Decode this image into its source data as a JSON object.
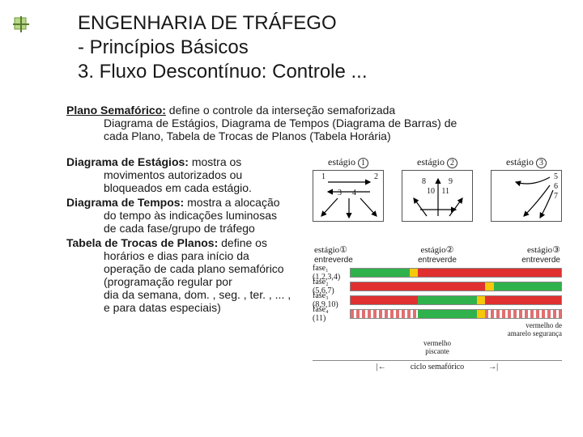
{
  "title": {
    "line1": "ENGENHARIA DE TRÁFEGO",
    "line2": "- Princípios Básicos",
    "line3": "3. Fluxo Descontínuo: Controle ..."
  },
  "plano": {
    "head": "Plano Semafórico:",
    "tail": " define o controle da interseção semaforizada",
    "sub1": "Diagrama de Estágios, Diagrama de Tempos (Diagrama de Barras) de",
    "sub2": "cada Plano, Tabela de Trocas de Planos (Tabela Horária)"
  },
  "defs": {
    "est": {
      "head": "Diagrama de Estágios:",
      "tail": " mostra os",
      "l1": "movimentos autorizados ou",
      "l2": "bloqueados em cada estágio."
    },
    "tmp": {
      "head": "Diagrama de Tempos:",
      "tail": " mostra a alocação",
      "l1": "do tempo às indicações luminosas",
      "l2": "de cada fase/grupo de tráfego"
    },
    "tab": {
      "head": "Tabela de Trocas de Planos:",
      "tail": " define os",
      "l1": "horários e dias para início da",
      "l2": "operação de cada plano semafórico",
      "l3": "(programação regular por",
      "l4": "dia da semana, dom. , seg. , ter. , ... ,",
      "l5": "e para datas especiais)"
    }
  },
  "stages": {
    "label": "estágio",
    "nums": [
      "1",
      "2",
      "3"
    ],
    "arrows": {
      "s1": [
        "1",
        "2",
        "3",
        "4"
      ],
      "s2": [
        "8",
        "9",
        "10",
        "11"
      ],
      "s3": [
        "5",
        "6",
        "7"
      ]
    }
  },
  "timing": {
    "head": {
      "s1": "estágio①",
      "s2": "estágio②",
      "s3": "estágio③"
    },
    "sub": {
      "g": "entreverde",
      "repeat": 3
    },
    "phases": [
      {
        "label": "fase₁\n(1,2,3,4)",
        "bars": [
          {
            "w": 0.28,
            "c": "#2fb24c"
          },
          {
            "w": 0.04,
            "c": "#f5c80c"
          },
          {
            "w": 0.36,
            "c": "#e03030"
          },
          {
            "w": 0.32,
            "c": "#e03030"
          }
        ]
      },
      {
        "label": "fase₂\n(5,6,7)",
        "bars": [
          {
            "w": 0.32,
            "c": "#e03030"
          },
          {
            "w": 0.32,
            "c": "#e03030"
          },
          {
            "w": 0.04,
            "c": "#f5c80c"
          },
          {
            "w": 0.32,
            "c": "#2fb24c"
          }
        ]
      },
      {
        "label": "fase₃\n(8,9,10)",
        "bars": [
          {
            "w": 0.32,
            "c": "#e03030"
          },
          {
            "w": 0.28,
            "c": "#2fb24c"
          },
          {
            "w": 0.04,
            "c": "#f5c80c"
          },
          {
            "w": 0.36,
            "c": "#e03030"
          }
        ]
      },
      {
        "label": "fase₄\n(11)",
        "bars": [
          {
            "w": 0.32,
            "c": "#e07070",
            "dash": true
          },
          {
            "w": 0.28,
            "c": "#2fb24c"
          },
          {
            "w": 0.04,
            "c": "#f5c80c"
          },
          {
            "w": 0.36,
            "c": "#e07070",
            "dash": true
          }
        ]
      }
    ],
    "legend1a": "vermelho de",
    "legend1b": "amarelo   segurança",
    "legend2a": "vermelho",
    "legend2b": "piscante",
    "footer": "ciclo semafórico"
  }
}
